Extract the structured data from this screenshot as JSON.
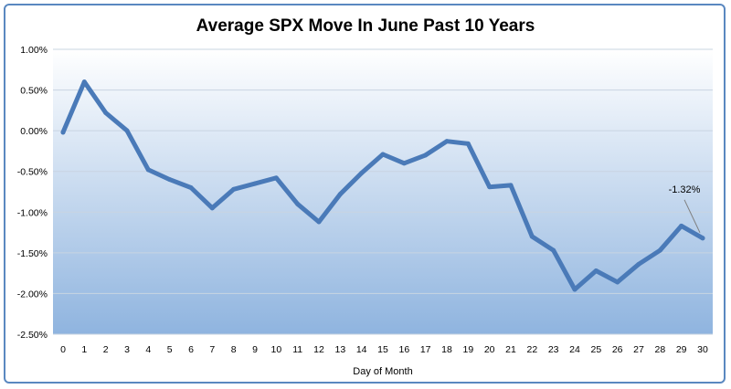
{
  "chart_data": {
    "type": "line",
    "title": "Average SPX Move In June Past 10 Years",
    "xlabel": "Day of Month",
    "ylabel": "",
    "x": [
      0,
      1,
      2,
      3,
      4,
      5,
      6,
      7,
      8,
      9,
      10,
      11,
      12,
      13,
      14,
      15,
      16,
      17,
      18,
      19,
      20,
      21,
      22,
      23,
      24,
      25,
      26,
      27,
      28,
      29,
      30
    ],
    "series": [
      {
        "values": [
          -0.02,
          0.6,
          0.22,
          0.0,
          -0.48,
          -0.6,
          -0.7,
          -0.95,
          -0.72,
          -0.65,
          -0.58,
          -0.9,
          -1.12,
          -0.78,
          -0.52,
          -0.29,
          -0.4,
          -0.3,
          -0.13,
          -0.16,
          -0.69,
          -0.67,
          -1.3,
          -1.47,
          -1.95,
          -1.72,
          -1.86,
          -1.64,
          -1.47,
          -1.17,
          -1.32
        ],
        "color": "#4a7ab8"
      }
    ],
    "ylim": [
      -2.5,
      1.0
    ],
    "y_ticks": [
      "1.00%",
      "0.50%",
      "0.00%",
      "-0.50%",
      "-1.00%",
      "-1.50%",
      "-2.00%",
      "-2.50%"
    ],
    "y_tick_values": [
      1.0,
      0.5,
      0.0,
      -0.5,
      -1.0,
      -1.5,
      -2.0,
      -2.5
    ],
    "x_ticks": [
      "0",
      "1",
      "2",
      "3",
      "4",
      "5",
      "6",
      "7",
      "8",
      "9",
      "10",
      "11",
      "12",
      "13",
      "14",
      "15",
      "16",
      "17",
      "18",
      "19",
      "20",
      "21",
      "22",
      "23",
      "24",
      "25",
      "26",
      "27",
      "28",
      "29",
      "30"
    ],
    "grid": true,
    "annotations": [
      {
        "text": "-1.32%",
        "x": 30,
        "y": -1.32
      }
    ]
  }
}
